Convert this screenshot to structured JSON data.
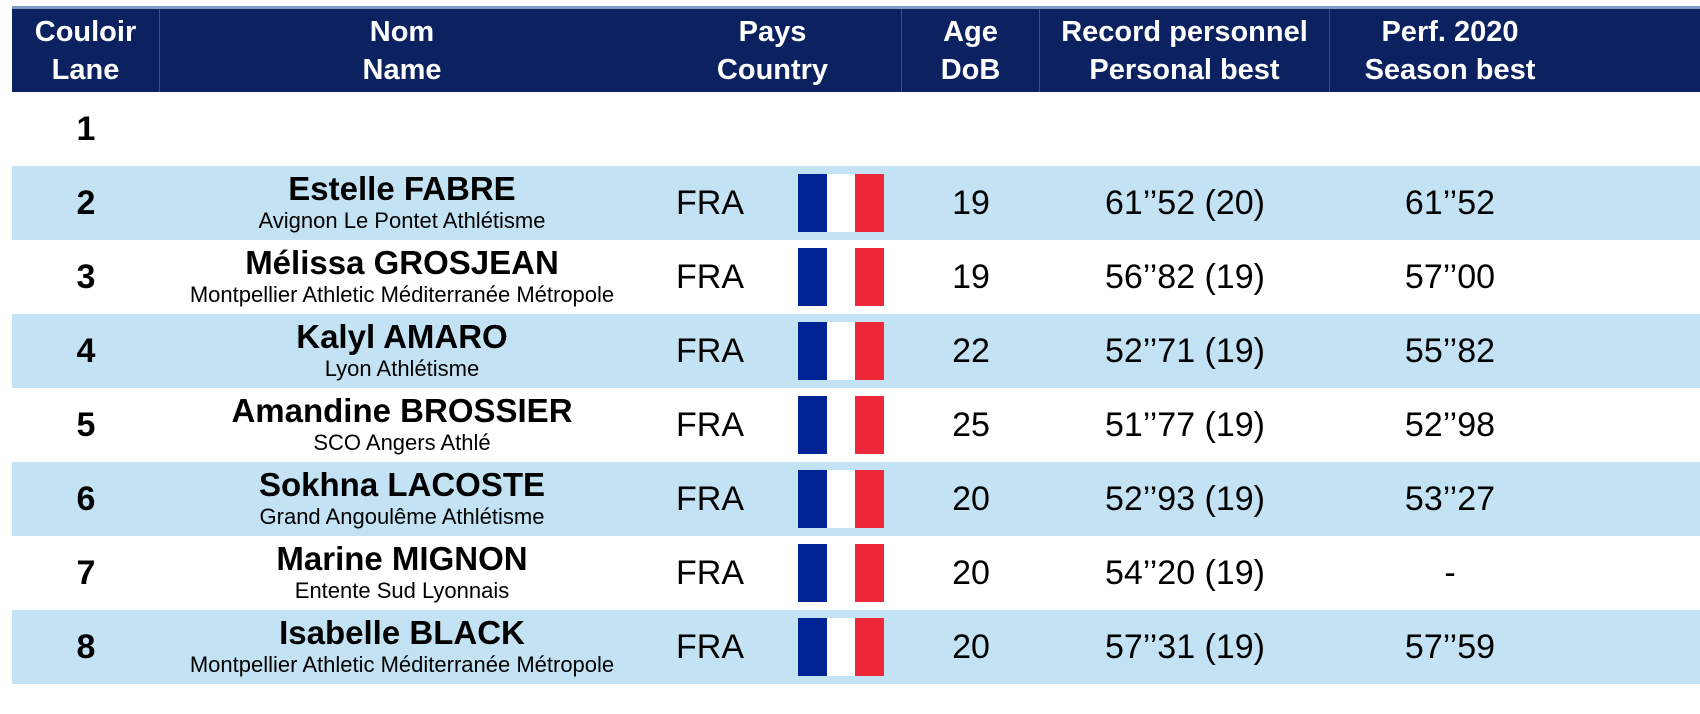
{
  "header": {
    "lane": [
      "Couloir",
      "Lane"
    ],
    "name": [
      "Nom",
      "Name"
    ],
    "country": [
      "Pays",
      "Country"
    ],
    "age": [
      "Age",
      "DoB"
    ],
    "pb": [
      "Record personnel",
      "Personal best"
    ],
    "sb": [
      "Perf. 2020",
      "Season best"
    ]
  },
  "colors": {
    "header_bg": "#0b2160",
    "row_shade": "#c3e3f4",
    "flag": [
      "#002395",
      "#ffffff",
      "#ed2939"
    ]
  },
  "rows": [
    {
      "lane": "1",
      "name": "",
      "club": "",
      "country": "",
      "flag": "",
      "age": "",
      "pb": "",
      "sb": ""
    },
    {
      "lane": "2",
      "name": "Estelle FABRE",
      "club": "Avignon Le Pontet Athlétisme",
      "country": "FRA",
      "flag": "france-flag-icon",
      "age": "19",
      "pb": "61’’52 (20)",
      "sb": "61’’52"
    },
    {
      "lane": "3",
      "name": "Mélissa GROSJEAN",
      "club": "Montpellier Athletic Méditerranée Métropole",
      "country": "FRA",
      "flag": "france-flag-icon",
      "age": "19",
      "pb": "56’’82 (19)",
      "sb": "57’’00"
    },
    {
      "lane": "4",
      "name": "Kalyl AMARO",
      "club": "Lyon Athlétisme",
      "country": "FRA",
      "flag": "france-flag-icon",
      "age": "22",
      "pb": "52’’71 (19)",
      "sb": "55’’82"
    },
    {
      "lane": "5",
      "name": "Amandine BROSSIER",
      "club": "SCO Angers Athlé",
      "country": "FRA",
      "flag": "france-flag-icon",
      "age": "25",
      "pb": "51’’77 (19)",
      "sb": "52’’98"
    },
    {
      "lane": "6",
      "name": "Sokhna LACOSTE",
      "club": "Grand Angoulême Athlétisme",
      "country": "FRA",
      "flag": "france-flag-icon",
      "age": "20",
      "pb": "52’’93 (19)",
      "sb": "53’’27"
    },
    {
      "lane": "7",
      "name": "Marine MIGNON",
      "club": "Entente Sud Lyonnais",
      "country": "FRA",
      "flag": "france-flag-icon",
      "age": "20",
      "pb": "54’’20 (19)",
      "sb": "-"
    },
    {
      "lane": "8",
      "name": "Isabelle BLACK",
      "club": "Montpellier Athletic Méditerranée Métropole",
      "country": "FRA",
      "flag": "france-flag-icon",
      "age": "20",
      "pb": "57’’31 (19)",
      "sb": "57’’59"
    }
  ]
}
